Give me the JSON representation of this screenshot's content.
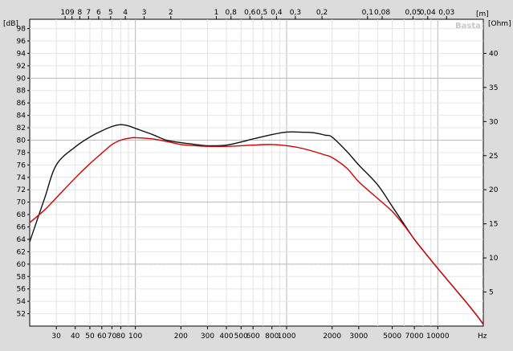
{
  "chart_data": {
    "type": "line",
    "watermark": "Basta!",
    "left_axis": {
      "unit": "[dB]",
      "ticks": [
        52,
        54,
        56,
        58,
        60,
        62,
        64,
        66,
        68,
        70,
        72,
        74,
        76,
        78,
        80,
        82,
        84,
        86,
        88,
        90,
        92,
        94,
        96,
        98
      ],
      "range": [
        50,
        99.5
      ]
    },
    "right_axis": {
      "unit": "[Ohm]",
      "ticks": [
        5,
        10,
        15,
        20,
        25,
        30,
        35,
        40
      ],
      "range": [
        0,
        45
      ]
    },
    "bottom_axis": {
      "unit": "Hz",
      "scale": "log",
      "range": [
        20,
        20000
      ],
      "ticks": [
        {
          "v": 30,
          "label": "30"
        },
        {
          "v": 40,
          "label": "40"
        },
        {
          "v": 50,
          "label": "50"
        },
        {
          "v": 60,
          "label": "60"
        },
        {
          "v": 70,
          "label": "70"
        },
        {
          "v": 80,
          "label": "80"
        },
        {
          "v": 100,
          "label": "100"
        },
        {
          "v": 200,
          "label": "200"
        },
        {
          "v": 300,
          "label": "300"
        },
        {
          "v": 400,
          "label": "400"
        },
        {
          "v": 500,
          "label": "500"
        },
        {
          "v": 600,
          "label": "600"
        },
        {
          "v": 800,
          "label": "800"
        },
        {
          "v": 1000,
          "label": "1000"
        },
        {
          "v": 2000,
          "label": "2000"
        },
        {
          "v": 3000,
          "label": "3000"
        },
        {
          "v": 5000,
          "label": "5000"
        },
        {
          "v": 7000,
          "label": "7000"
        },
        {
          "v": 10000,
          "label": "10000"
        }
      ]
    },
    "top_axis": {
      "unit": "[m]",
      "scale": "log (wavelength)",
      "ticks": [
        {
          "v": 10,
          "label": "10"
        },
        {
          "v": 9,
          "label": "9"
        },
        {
          "v": 8,
          "label": "8"
        },
        {
          "v": 7,
          "label": "7"
        },
        {
          "v": 6,
          "label": "6"
        },
        {
          "v": 5,
          "label": "5"
        },
        {
          "v": 4,
          "label": "4"
        },
        {
          "v": 3,
          "label": "3"
        },
        {
          "v": 2,
          "label": "2"
        },
        {
          "v": 1,
          "label": "1"
        },
        {
          "v": 0.8,
          "label": "0,8"
        },
        {
          "v": 0.6,
          "label": "0,6"
        },
        {
          "v": 0.5,
          "label": "0,5"
        },
        {
          "v": 0.4,
          "label": "0,4"
        },
        {
          "v": 0.3,
          "label": "0,3"
        },
        {
          "v": 0.2,
          "label": "0,2"
        },
        {
          "v": 0.1,
          "label": "0,1"
        },
        {
          "v": 0.08,
          "label": "0,08"
        },
        {
          "v": 0.05,
          "label": "0,05"
        },
        {
          "v": 0.04,
          "label": "0,04"
        },
        {
          "v": 0.03,
          "label": "0,03"
        }
      ]
    },
    "grid": true,
    "series": [
      {
        "color": "#111111",
        "axis": "left",
        "points": [
          [
            20,
            63.6
          ],
          [
            25,
            70.5
          ],
          [
            30,
            76.0
          ],
          [
            40,
            78.9
          ],
          [
            50,
            80.5
          ],
          [
            60,
            81.5
          ],
          [
            70,
            82.2
          ],
          [
            80,
            82.5
          ],
          [
            90,
            82.3
          ],
          [
            100,
            81.9
          ],
          [
            130,
            80.9
          ],
          [
            160,
            80.0
          ],
          [
            200,
            79.6
          ],
          [
            250,
            79.3
          ],
          [
            300,
            79.1
          ],
          [
            400,
            79.2
          ],
          [
            500,
            79.7
          ],
          [
            600,
            80.2
          ],
          [
            800,
            80.9
          ],
          [
            1000,
            81.3
          ],
          [
            1200,
            81.3
          ],
          [
            1500,
            81.2
          ],
          [
            1800,
            80.8
          ],
          [
            2000,
            80.5
          ],
          [
            2500,
            78.2
          ],
          [
            3000,
            76.0
          ],
          [
            4000,
            72.8
          ],
          [
            5000,
            69.3
          ],
          [
            6000,
            66.4
          ],
          [
            7000,
            64.0
          ],
          [
            8000,
            62.2
          ],
          [
            10000,
            59.3
          ],
          [
            12000,
            57.0
          ],
          [
            15000,
            54.2
          ],
          [
            18000,
            51.8
          ],
          [
            20000,
            50.3
          ]
        ]
      },
      {
        "color": "#d40000",
        "axis": "left",
        "points": [
          [
            20,
            66.7
          ],
          [
            25,
            68.7
          ],
          [
            30,
            70.7
          ],
          [
            40,
            73.9
          ],
          [
            50,
            76.2
          ],
          [
            60,
            77.9
          ],
          [
            70,
            79.3
          ],
          [
            80,
            80.0
          ],
          [
            90,
            80.3
          ],
          [
            100,
            80.4
          ],
          [
            130,
            80.2
          ],
          [
            160,
            79.8
          ],
          [
            200,
            79.3
          ],
          [
            250,
            79.1
          ],
          [
            300,
            79.0
          ],
          [
            400,
            79.0
          ],
          [
            500,
            79.1
          ],
          [
            600,
            79.2
          ],
          [
            800,
            79.3
          ],
          [
            1000,
            79.1
          ],
          [
            1200,
            78.8
          ],
          [
            1500,
            78.2
          ],
          [
            1800,
            77.6
          ],
          [
            2000,
            77.2
          ],
          [
            2500,
            75.5
          ],
          [
            3000,
            73.3
          ],
          [
            4000,
            70.6
          ],
          [
            5000,
            68.5
          ],
          [
            6000,
            66.2
          ],
          [
            7000,
            64.0
          ],
          [
            8000,
            62.2
          ],
          [
            10000,
            59.3
          ],
          [
            12000,
            57.0
          ],
          [
            15000,
            54.2
          ],
          [
            18000,
            51.8
          ],
          [
            20000,
            50.3
          ]
        ]
      }
    ]
  }
}
